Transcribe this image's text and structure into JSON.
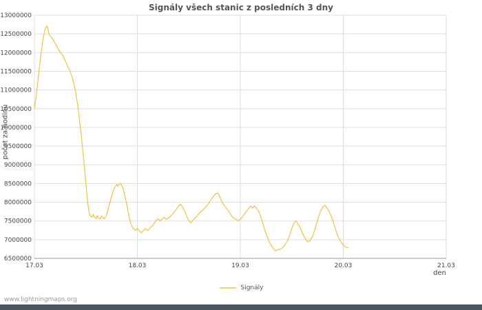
{
  "title": "Signály všech stanic z posledních 3 dny",
  "axes": {
    "x_label": "den",
    "y_label": "počet za hodinu",
    "x_ticks": [
      "17.03",
      "18.03",
      "19.03",
      "20.03",
      "21.03"
    ]
  },
  "legend": {
    "label": "Signály"
  },
  "footer": {
    "watermark": "www.lightningmaps.org"
  },
  "colors": {
    "line": "#f0c040",
    "grid": "#dddddd",
    "axis": "#999999",
    "tick_text": "#444444",
    "title_text": "#555555",
    "watermark_text": "#9a9a9a",
    "footer_bar": "#4a585c"
  },
  "chart_data": {
    "type": "line",
    "title": "Signály všech stanic z posledních 3 dny",
    "xlabel": "den",
    "ylabel": "počet za hodinu",
    "xlim": [
      0,
      4
    ],
    "ylim": [
      6500000,
      13000000
    ],
    "y_ticks": [
      6500000,
      7000000,
      7500000,
      8000000,
      8500000,
      9000000,
      9500000,
      10000000,
      10500000,
      11000000,
      11500000,
      12000000,
      12500000,
      13000000
    ],
    "x_tick_positions": [
      0,
      1,
      2,
      3,
      4
    ],
    "x_tick_labels": [
      "17.03",
      "18.03",
      "19.03",
      "20.03",
      "21.03"
    ],
    "grid": true,
    "legend_position": "bottom",
    "series": [
      {
        "name": "Signály",
        "points": [
          [
            0.0,
            10500000
          ],
          [
            0.02,
            10900000
          ],
          [
            0.04,
            11400000
          ],
          [
            0.06,
            11900000
          ],
          [
            0.08,
            12300000
          ],
          [
            0.1,
            12600000
          ],
          [
            0.12,
            12720000
          ],
          [
            0.13,
            12650000
          ],
          [
            0.14,
            12500000
          ],
          [
            0.16,
            12420000
          ],
          [
            0.18,
            12350000
          ],
          [
            0.2,
            12250000
          ],
          [
            0.22,
            12150000
          ],
          [
            0.24,
            12050000
          ],
          [
            0.26,
            11980000
          ],
          [
            0.28,
            11900000
          ],
          [
            0.3,
            11780000
          ],
          [
            0.32,
            11650000
          ],
          [
            0.34,
            11550000
          ],
          [
            0.36,
            11400000
          ],
          [
            0.38,
            11200000
          ],
          [
            0.4,
            10950000
          ],
          [
            0.42,
            10600000
          ],
          [
            0.44,
            10150000
          ],
          [
            0.46,
            9650000
          ],
          [
            0.48,
            9100000
          ],
          [
            0.5,
            8500000
          ],
          [
            0.52,
            7950000
          ],
          [
            0.53,
            7750000
          ],
          [
            0.54,
            7650000
          ],
          [
            0.56,
            7600000
          ],
          [
            0.57,
            7680000
          ],
          [
            0.58,
            7620000
          ],
          [
            0.6,
            7560000
          ],
          [
            0.61,
            7640000
          ],
          [
            0.62,
            7580000
          ],
          [
            0.64,
            7550000
          ],
          [
            0.65,
            7630000
          ],
          [
            0.66,
            7600000
          ],
          [
            0.68,
            7560000
          ],
          [
            0.7,
            7650000
          ],
          [
            0.72,
            7850000
          ],
          [
            0.74,
            8050000
          ],
          [
            0.76,
            8250000
          ],
          [
            0.78,
            8400000
          ],
          [
            0.8,
            8480000
          ],
          [
            0.81,
            8420000
          ],
          [
            0.82,
            8470000
          ],
          [
            0.84,
            8500000
          ],
          [
            0.85,
            8430000
          ],
          [
            0.86,
            8380000
          ],
          [
            0.88,
            8150000
          ],
          [
            0.9,
            7900000
          ],
          [
            0.92,
            7600000
          ],
          [
            0.94,
            7400000
          ],
          [
            0.96,
            7300000
          ],
          [
            0.98,
            7250000
          ],
          [
            1.0,
            7300000
          ],
          [
            1.02,
            7230000
          ],
          [
            1.04,
            7180000
          ],
          [
            1.06,
            7250000
          ],
          [
            1.08,
            7300000
          ],
          [
            1.1,
            7240000
          ],
          [
            1.12,
            7300000
          ],
          [
            1.14,
            7350000
          ],
          [
            1.16,
            7420000
          ],
          [
            1.18,
            7500000
          ],
          [
            1.2,
            7560000
          ],
          [
            1.22,
            7500000
          ],
          [
            1.24,
            7550000
          ],
          [
            1.26,
            7600000
          ],
          [
            1.28,
            7540000
          ],
          [
            1.3,
            7580000
          ],
          [
            1.32,
            7620000
          ],
          [
            1.34,
            7680000
          ],
          [
            1.36,
            7740000
          ],
          [
            1.38,
            7820000
          ],
          [
            1.4,
            7900000
          ],
          [
            1.42,
            7950000
          ],
          [
            1.44,
            7870000
          ],
          [
            1.46,
            7760000
          ],
          [
            1.48,
            7620000
          ],
          [
            1.5,
            7500000
          ],
          [
            1.52,
            7450000
          ],
          [
            1.54,
            7520000
          ],
          [
            1.56,
            7580000
          ],
          [
            1.58,
            7630000
          ],
          [
            1.6,
            7700000
          ],
          [
            1.62,
            7760000
          ],
          [
            1.64,
            7800000
          ],
          [
            1.66,
            7860000
          ],
          [
            1.68,
            7920000
          ],
          [
            1.7,
            8000000
          ],
          [
            1.72,
            8080000
          ],
          [
            1.74,
            8160000
          ],
          [
            1.76,
            8220000
          ],
          [
            1.78,
            8250000
          ],
          [
            1.8,
            8160000
          ],
          [
            1.82,
            8020000
          ],
          [
            1.84,
            7930000
          ],
          [
            1.86,
            7850000
          ],
          [
            1.88,
            7790000
          ],
          [
            1.9,
            7700000
          ],
          [
            1.92,
            7620000
          ],
          [
            1.94,
            7570000
          ],
          [
            1.96,
            7540000
          ],
          [
            1.98,
            7500000
          ],
          [
            2.0,
            7550000
          ],
          [
            2.02,
            7610000
          ],
          [
            2.04,
            7680000
          ],
          [
            2.06,
            7760000
          ],
          [
            2.08,
            7830000
          ],
          [
            2.1,
            7900000
          ],
          [
            2.12,
            7850000
          ],
          [
            2.14,
            7900000
          ],
          [
            2.16,
            7830000
          ],
          [
            2.18,
            7750000
          ],
          [
            2.2,
            7600000
          ],
          [
            2.22,
            7420000
          ],
          [
            2.24,
            7240000
          ],
          [
            2.26,
            7080000
          ],
          [
            2.28,
            6950000
          ],
          [
            2.3,
            6850000
          ],
          [
            2.32,
            6760000
          ],
          [
            2.34,
            6700000
          ],
          [
            2.36,
            6720000
          ],
          [
            2.38,
            6740000
          ],
          [
            2.4,
            6760000
          ],
          [
            2.42,
            6810000
          ],
          [
            2.44,
            6880000
          ],
          [
            2.46,
            6980000
          ],
          [
            2.48,
            7120000
          ],
          [
            2.5,
            7300000
          ],
          [
            2.52,
            7440000
          ],
          [
            2.54,
            7500000
          ],
          [
            2.56,
            7420000
          ],
          [
            2.58,
            7330000
          ],
          [
            2.6,
            7200000
          ],
          [
            2.62,
            7080000
          ],
          [
            2.64,
            6980000
          ],
          [
            2.66,
            6940000
          ],
          [
            2.68,
            6990000
          ],
          [
            2.7,
            7080000
          ],
          [
            2.72,
            7230000
          ],
          [
            2.74,
            7420000
          ],
          [
            2.76,
            7600000
          ],
          [
            2.78,
            7760000
          ],
          [
            2.8,
            7870000
          ],
          [
            2.82,
            7920000
          ],
          [
            2.84,
            7860000
          ],
          [
            2.86,
            7760000
          ],
          [
            2.88,
            7650000
          ],
          [
            2.9,
            7500000
          ],
          [
            2.92,
            7320000
          ],
          [
            2.94,
            7150000
          ],
          [
            2.96,
            7020000
          ],
          [
            2.98,
            6930000
          ],
          [
            3.0,
            6860000
          ],
          [
            3.02,
            6800000
          ],
          [
            3.04,
            6790000
          ],
          [
            3.05,
            6780000
          ]
        ]
      }
    ]
  }
}
